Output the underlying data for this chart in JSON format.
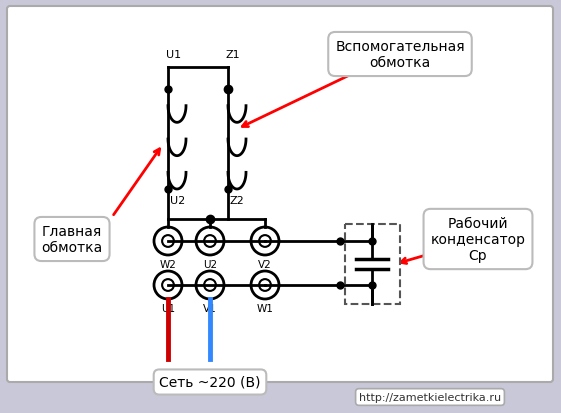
{
  "bg_color": "#c8c8d8",
  "diagram_bg": "#ffffff",
  "title_label1": "Вспомогательная\nобмотка",
  "title_label2": "Рабочий\nконденсатор\nСр",
  "title_label3": "Главная\nобмотка",
  "bottom_label": "Сеть ~220 (В)",
  "url_label": "http://zametkielectrika.ru",
  "font_size_label": 10,
  "font_size_small": 8,
  "font_size_url": 8
}
